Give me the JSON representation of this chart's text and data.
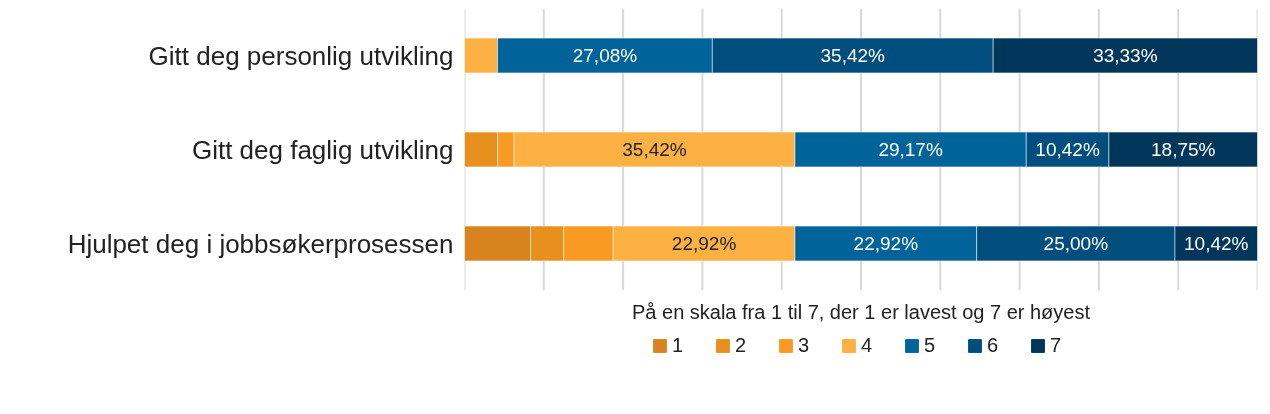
{
  "chart_data": {
    "type": "bar",
    "orientation": "horizontal",
    "stacked": true,
    "categories": [
      "Gitt deg personlig utvikling",
      "Gitt deg faglig utvikling",
      "Hjulpet deg i jobbsøkerprosessen"
    ],
    "xlabel": "På en skala fra 1 til 7, der 1 er lavest og 7 er høyest",
    "xlim": [
      0,
      100
    ],
    "xticks": [
      {
        "value": 0,
        "label": null
      },
      {
        "value": 10,
        "label": null
      },
      {
        "value": 20,
        "label": null
      },
      {
        "value": 30,
        "label": null
      },
      {
        "value": 40,
        "label": null
      },
      {
        "value": 50,
        "label": null
      },
      {
        "value": 60,
        "label": null
      },
      {
        "value": 70,
        "label": null
      },
      {
        "value": 80,
        "label": null
      },
      {
        "value": 90,
        "label": null
      },
      {
        "value": 100,
        "label": null
      }
    ],
    "tick_labels": "y",
    "grid": "x",
    "legend": "bottom",
    "series": [
      {
        "name": "1",
        "color": "#d9831f",
        "values": [
          0,
          0,
          8.33
        ],
        "value_labels": [
          null,
          null,
          null
        ]
      },
      {
        "name": "2",
        "color": "#e8901e",
        "values": [
          0,
          4.17,
          4.17
        ],
        "value_labels": [
          null,
          null,
          null
        ]
      },
      {
        "name": "3",
        "color": "#f99b22",
        "values": [
          0,
          2.08,
          6.25
        ],
        "value_labels": [
          null,
          null,
          null
        ]
      },
      {
        "name": "4",
        "color": "#fdb143",
        "values": [
          4.17,
          35.42,
          22.92
        ],
        "value_labels": [
          null,
          "35,42%",
          "22,92%"
        ]
      },
      {
        "name": "5",
        "color": "#00649b",
        "values": [
          27.08,
          29.17,
          22.92
        ],
        "value_labels": [
          "27,08%",
          "29,17%",
          "22,92%"
        ]
      },
      {
        "name": "6",
        "color": "#004e7e",
        "values": [
          35.42,
          10.42,
          25.0
        ],
        "value_labels": [
          "35,42%",
          "10,42%",
          "25,00%"
        ]
      },
      {
        "name": "7",
        "color": "#003659",
        "values": [
          33.33,
          18.75,
          10.42
        ],
        "value_labels": [
          "33,33%",
          "18,75%",
          "10,42%"
        ]
      }
    ]
  }
}
